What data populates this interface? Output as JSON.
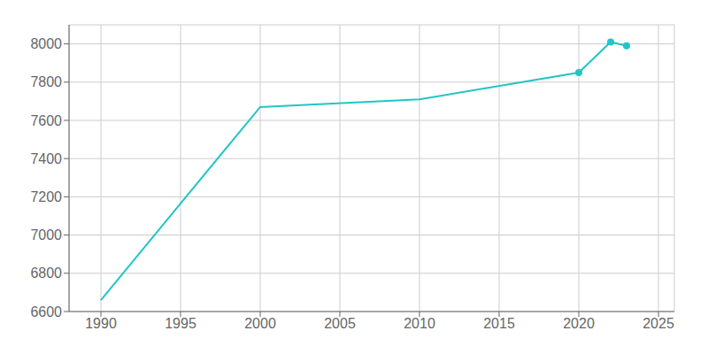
{
  "chart_data": {
    "type": "line",
    "x": [
      1990,
      2000,
      2010,
      2020,
      2021,
      2022,
      2023
    ],
    "series": [
      {
        "type": "line",
        "color": "#22c5c5",
        "marker": "none",
        "values": [
          6660,
          7670,
          7710,
          7850,
          7930,
          8010,
          7990
        ]
      },
      {
        "type": "scatter",
        "color": "#22c5c5",
        "marker": "o",
        "values": [
          null,
          null,
          null,
          7850,
          null,
          8010,
          7990
        ]
      }
    ],
    "xlim": [
      1988,
      2026
    ],
    "ylim": [
      6600,
      8100
    ],
    "xticks": [
      1990,
      1995,
      2000,
      2005,
      2010,
      2015,
      2020,
      2025
    ],
    "yticks": [
      6600,
      6800,
      7000,
      7200,
      7400,
      7600,
      7800,
      8000
    ],
    "grid": true
  }
}
